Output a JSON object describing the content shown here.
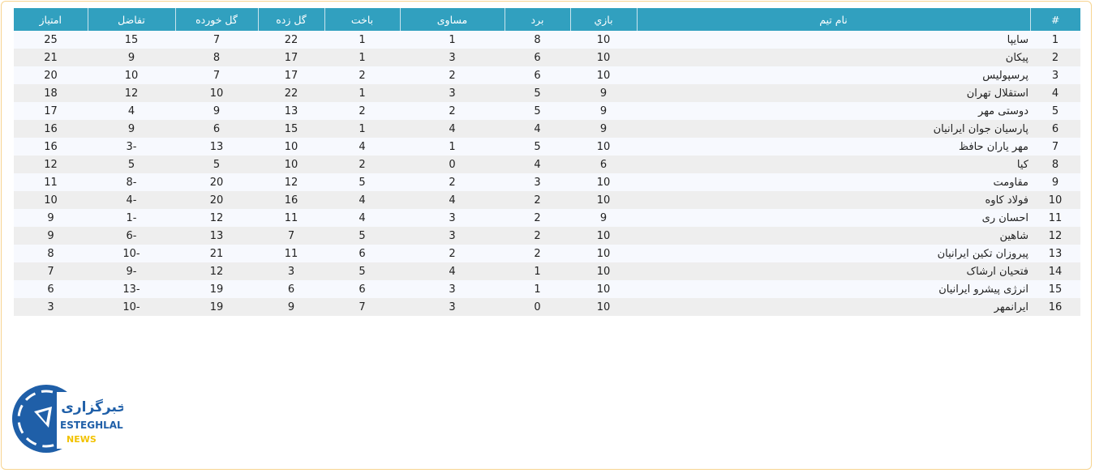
{
  "table": {
    "headers": [
      "#",
      "نام تیم",
      "بازي",
      "برد",
      "مساوی",
      "باخت",
      "گل زده",
      "گل خورده",
      "تفاضل",
      "امتیاز"
    ],
    "rows": [
      [
        "1",
        "سایپا",
        "10",
        "8",
        "1",
        "1",
        "22",
        "7",
        "15",
        "25"
      ],
      [
        "2",
        "پیکان",
        "10",
        "6",
        "3",
        "1",
        "17",
        "8",
        "9",
        "21"
      ],
      [
        "3",
        "پرسپولیس",
        "10",
        "6",
        "2",
        "2",
        "17",
        "7",
        "10",
        "20"
      ],
      [
        "4",
        "استقلال تهران",
        "9",
        "5",
        "3",
        "1",
        "22",
        "10",
        "12",
        "18"
      ],
      [
        "5",
        "دوستی مهر",
        "9",
        "5",
        "2",
        "2",
        "13",
        "9",
        "4",
        "17"
      ],
      [
        "6",
        "پارسیان جوان ایرانیان",
        "9",
        "4",
        "4",
        "1",
        "15",
        "6",
        "9",
        "16"
      ],
      [
        "7",
        "مهر یاران حافظ",
        "10",
        "5",
        "1",
        "4",
        "10",
        "13",
        "-3",
        "16"
      ],
      [
        "8",
        "کیا",
        "6",
        "4",
        "0",
        "2",
        "10",
        "5",
        "5",
        "12"
      ],
      [
        "9",
        "مقاومت",
        "10",
        "3",
        "2",
        "5",
        "12",
        "20",
        "-8",
        "11"
      ],
      [
        "10",
        "فولاد کاوه",
        "10",
        "2",
        "4",
        "4",
        "16",
        "20",
        "-4",
        "10"
      ],
      [
        "11",
        "احسان ری",
        "9",
        "2",
        "3",
        "4",
        "11",
        "12",
        "-1",
        "9"
      ],
      [
        "12",
        "شاهین",
        "10",
        "2",
        "3",
        "5",
        "7",
        "13",
        "-6",
        "9"
      ],
      [
        "13",
        "پیروزان تکین ایرانیان",
        "10",
        "2",
        "2",
        "6",
        "11",
        "21",
        "-10",
        "8"
      ],
      [
        "14",
        "فتحیان ارشاک",
        "10",
        "1",
        "4",
        "5",
        "3",
        "12",
        "-9",
        "7"
      ],
      [
        "15",
        "انرژی پیشرو ایرانیان",
        "10",
        "1",
        "3",
        "6",
        "6",
        "19",
        "-13",
        "6"
      ],
      [
        "16",
        "ایرانمهر",
        "10",
        "0",
        "3",
        "7",
        "9",
        "19",
        "-10",
        "3"
      ]
    ]
  },
  "logo": {
    "persian": "خبرگزاری",
    "line1": "ESTEGHLAL",
    "line2": "NEWS"
  },
  "colors": {
    "header": "#31a0bf",
    "frame": "#f7d490",
    "logo_blue": "#1f5fa8",
    "logo_yellow": "#f2c200"
  }
}
